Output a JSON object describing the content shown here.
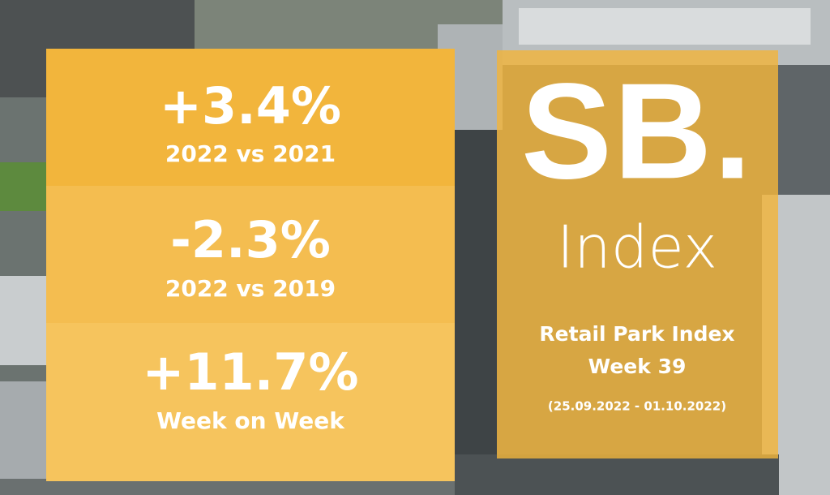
{
  "stats": [
    {
      "value": "+3.4%",
      "label": "2022 vs 2021"
    },
    {
      "value": "-2.3%",
      "label": "2022 vs 2019"
    },
    {
      "value": "+11.7%",
      "label": "Week on Week"
    }
  ],
  "brand": {
    "logo": "SB.",
    "subtitle": "Index"
  },
  "panel": {
    "title": "Retail Park Index",
    "week": "Week 39",
    "dates": "(25.09.2022 - 01.10.2022)"
  }
}
